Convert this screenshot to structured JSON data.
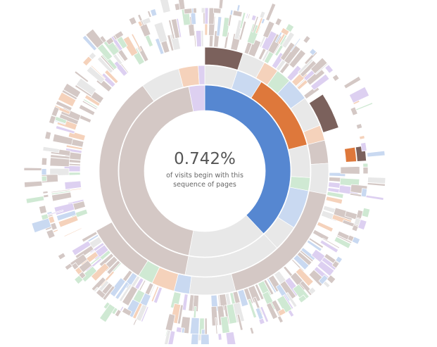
{
  "explanation": {
    "percentage": "0.742%",
    "caption": "of visits begin with this sequence of pages"
  },
  "chart_data": {
    "type": "sunburst",
    "metric": "share of visits by page sequence",
    "highlighted_sequence_percentage": 0.742,
    "colors": {
      "home": "#5687d1",
      "product": "#7b615c",
      "search": "#de783b",
      "account": "#6ab975",
      "other": "#a173d1",
      "end": "#bbbbbb"
    },
    "highlighted_path": [
      "home",
      "search",
      "product",
      "search",
      "end"
    ],
    "rings": [
      {
        "level": 1,
        "segments": [
          {
            "page": "home",
            "share": 0.38,
            "highlighted": true
          },
          {
            "page": "end",
            "share": 0.15,
            "highlighted": false
          },
          {
            "page": "product",
            "share": 0.44,
            "highlighted": false
          },
          {
            "page": "other",
            "share": 0.03,
            "highlighted": false
          }
        ]
      },
      {
        "level": 2,
        "segments": [
          {
            "page": "end",
            "share": 0.05
          },
          {
            "page": "home",
            "share": 0.04
          },
          {
            "page": "search",
            "share": 0.12,
            "highlighted": true
          },
          {
            "page": "end",
            "share": 0.05
          },
          {
            "page": "account",
            "share": 0.02
          },
          {
            "page": "home",
            "share": 0.06
          },
          {
            "page": "end",
            "share": 0.04
          },
          {
            "page": "end",
            "share": 0.15
          },
          {
            "page": "product",
            "share": 0.37
          },
          {
            "page": "end",
            "share": 0.06
          },
          {
            "page": "search",
            "share": 0.03
          },
          {
            "page": "other",
            "share": 0.01
          }
        ]
      },
      {
        "level": 3,
        "segments": [
          {
            "page": "product",
            "share": 0.05,
            "highlighted": true
          },
          {
            "page": "end",
            "share": 0.03
          },
          {
            "page": "search",
            "share": 0.02
          },
          {
            "page": "account",
            "share": 0.02
          },
          {
            "page": "home",
            "share": 0.03
          },
          {
            "page": "end",
            "share": 0.04
          },
          {
            "page": "search",
            "share": 0.02
          },
          {
            "page": "product",
            "share": 0.03
          },
          {
            "page": "end",
            "share": 0.04
          },
          {
            "page": "product",
            "share": 0.18
          },
          {
            "page": "end",
            "share": 0.06
          },
          {
            "page": "home",
            "share": 0.02
          },
          {
            "page": "search",
            "share": 0.03
          },
          {
            "page": "account",
            "share": 0.02
          },
          {
            "page": "product",
            "share": 0.08
          }
        ]
      }
    ]
  }
}
